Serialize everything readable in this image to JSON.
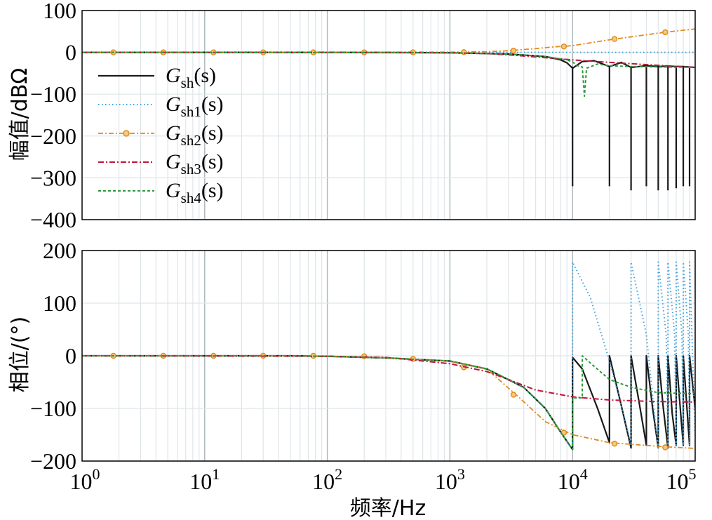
{
  "chart_data": [
    {
      "type": "line",
      "panel": "magnitude",
      "xscale": "log",
      "xlim": [
        1,
        100000
      ],
      "ylim": [
        -400,
        100
      ],
      "ylabel": "幅值/dBΩ",
      "grid": true,
      "legend_position": "left",
      "yticks": [
        "100",
        "0",
        "−100",
        "−200",
        "−300",
        "−400"
      ],
      "series": [
        {
          "name": "G_sh(s)",
          "label_base": "G",
          "label_sub": "sh",
          "label_tail": "(s)",
          "color": "#1a1a1a",
          "style": "solid",
          "points": [
            [
              1,
              0
            ],
            [
              100,
              0
            ],
            [
              1000,
              -1
            ],
            [
              3000,
              -4
            ],
            [
              6000,
              -10
            ],
            [
              8000,
              -18
            ],
            [
              9000,
              -25
            ],
            [
              10000,
              -38
            ],
            [
              12000,
              -22
            ],
            [
              15000,
              -20
            ],
            [
              20000,
              -34
            ],
            [
              25000,
              -24
            ],
            [
              30000,
              -36
            ],
            [
              40000,
              -32
            ],
            [
              50000,
              -34
            ],
            [
              60000,
              -33
            ],
            [
              70000,
              -34
            ],
            [
              80000,
              -34
            ],
            [
              90000,
              -35
            ],
            [
              100000,
              -36
            ]
          ],
          "notches": [
            [
              10000,
              -320
            ],
            [
              20000,
              -320
            ],
            [
              30000,
              -330
            ],
            [
              40000,
              -320
            ],
            [
              50000,
              -330
            ],
            [
              60000,
              -330
            ],
            [
              70000,
              -325
            ],
            [
              80000,
              -320
            ],
            [
              90000,
              -320
            ]
          ]
        },
        {
          "name": "G_sh1(s)",
          "label_base": "G",
          "label_sub": "sh1",
          "label_tail": "(s)",
          "color": "#3aa2e0",
          "style": "dotted",
          "points": [
            [
              1,
              0
            ],
            [
              100000,
              0
            ]
          ]
        },
        {
          "name": "G_sh2(s)",
          "label_base": "G",
          "label_sub": "sh2",
          "label_tail": "(s)",
          "color": "#e08a1e",
          "style": "dashdot-marker",
          "points": [
            [
              1,
              0
            ],
            [
              1000,
              0.5
            ],
            [
              2000,
              1.5
            ],
            [
              3000,
              4
            ],
            [
              5000,
              9
            ],
            [
              7000,
              13
            ],
            [
              10000,
              16
            ],
            [
              20000,
              30
            ],
            [
              30000,
              37
            ],
            [
              50000,
              46
            ],
            [
              70000,
              51
            ],
            [
              100000,
              56
            ]
          ],
          "markers": [
            [
              1.8,
              0
            ],
            [
              4.6,
              0
            ],
            [
              11.8,
              0
            ],
            [
              30,
              0
            ],
            [
              77,
              0
            ],
            [
              200,
              0
            ],
            [
              500,
              0
            ],
            [
              1300,
              0.5
            ],
            [
              3300,
              4
            ],
            [
              8500,
              14
            ],
            [
              22000,
              32
            ],
            [
              57000,
              48
            ]
          ]
        },
        {
          "name": "G_sh3(s)",
          "label_base": "G",
          "label_sub": "sh3",
          "label_tail": "(s)",
          "color": "#c0143c",
          "style": "dashdot",
          "points": [
            [
              1,
              0
            ],
            [
              300,
              0
            ],
            [
              1000,
              -1
            ],
            [
              2000,
              -3
            ],
            [
              3000,
              -6
            ],
            [
              5000,
              -11
            ],
            [
              10000,
              -18
            ],
            [
              20000,
              -24
            ],
            [
              50000,
              -31
            ],
            [
              100000,
              -36
            ]
          ]
        },
        {
          "name": "G_sh4(s)",
          "label_base": "G",
          "label_sub": "sh4",
          "label_tail": "(s)",
          "color": "#2e9a3c",
          "style": "dashed",
          "points": [
            [
              1,
              0
            ],
            [
              1000,
              -1
            ],
            [
              3000,
              -4
            ],
            [
              6000,
              -10
            ],
            [
              9000,
              -18
            ],
            [
              10000,
              -23
            ],
            [
              11000,
              -32
            ],
            [
              12000,
              -35
            ],
            [
              12500,
              -105
            ],
            [
              13000,
              -38
            ],
            [
              16000,
              -28
            ],
            [
              20000,
              -32
            ],
            [
              30000,
              -34
            ],
            [
              100000,
              -36
            ]
          ]
        }
      ]
    },
    {
      "type": "line",
      "panel": "phase",
      "xscale": "log",
      "xlim": [
        1,
        100000
      ],
      "ylim": [
        -200,
        200
      ],
      "xlabel": "频率/Hz",
      "ylabel": "相位/(°)",
      "grid": true,
      "yticks": [
        "200",
        "100",
        "0",
        "−100",
        "−200"
      ],
      "xticks": [
        {
          "base": "10",
          "exp": "0"
        },
        {
          "base": "10",
          "exp": "1"
        },
        {
          "base": "10",
          "exp": "2"
        },
        {
          "base": "10",
          "exp": "3"
        },
        {
          "base": "10",
          "exp": "4"
        },
        {
          "base": "10",
          "exp": "5"
        }
      ],
      "series": [
        {
          "name": "G_sh(s)",
          "color": "#1a1a1a",
          "style": "solid",
          "points": [
            [
              1,
              0
            ],
            [
              50,
              0
            ],
            [
              100,
              -1
            ],
            [
              300,
              -4
            ],
            [
              1000,
              -10
            ],
            [
              2000,
              -25
            ],
            [
              4000,
              -60
            ],
            [
              6000,
              -100
            ],
            [
              8000,
              -145
            ],
            [
              10000,
              -178
            ],
            [
              10001,
              -3
            ],
            [
              12000,
              -25
            ],
            [
              16000,
              -100
            ],
            [
              20000,
              -165
            ],
            [
              20001,
              0
            ],
            [
              25000,
              -95
            ],
            [
              30000,
              -175
            ],
            [
              30001,
              0
            ],
            [
              35000,
              -90
            ],
            [
              40000,
              -170
            ],
            [
              40001,
              0
            ],
            [
              45000,
              -100
            ],
            [
              50000,
              -175
            ],
            [
              50001,
              0
            ],
            [
              55000,
              -100
            ],
            [
              60000,
              -175
            ],
            [
              60001,
              0
            ],
            [
              65000,
              -110
            ],
            [
              70000,
              -170
            ],
            [
              70001,
              0
            ],
            [
              75000,
              -90
            ],
            [
              80000,
              -170
            ],
            [
              80001,
              0
            ],
            [
              90000,
              -170
            ],
            [
              90001,
              0
            ],
            [
              100000,
              -100
            ]
          ]
        },
        {
          "name": "G_sh1(s)",
          "color": "#3aa2e0",
          "style": "dotted",
          "points": [
            [
              1,
              0
            ],
            [
              50,
              0
            ],
            [
              100,
              -1
            ],
            [
              300,
              -4
            ],
            [
              1000,
              -10
            ],
            [
              2000,
              -25
            ],
            [
              4000,
              -60
            ],
            [
              6000,
              -100
            ],
            [
              8000,
              -145
            ],
            [
              10000,
              -178
            ],
            [
              10001,
              178
            ],
            [
              14000,
              110
            ],
            [
              20000,
              -10
            ],
            [
              26000,
              -110
            ],
            [
              30000,
              -170
            ],
            [
              30001,
              178
            ],
            [
              40000,
              40
            ],
            [
              48000,
              -140
            ],
            [
              50000,
              -175
            ],
            [
              50001,
              178
            ],
            [
              58000,
              40
            ],
            [
              60000,
              -170
            ],
            [
              60001,
              178
            ],
            [
              68000,
              40
            ],
            [
              70000,
              -170
            ],
            [
              70001,
              178
            ],
            [
              78000,
              40
            ],
            [
              80000,
              -170
            ],
            [
              80001,
              178
            ],
            [
              88000,
              40
            ],
            [
              90000,
              -170
            ],
            [
              90001,
              178
            ],
            [
              100000,
              -150
            ]
          ]
        },
        {
          "name": "G_sh2(s)",
          "color": "#e08a1e",
          "style": "dashdot-marker",
          "points": [
            [
              1,
              0
            ],
            [
              50,
              0
            ],
            [
              100,
              -1
            ],
            [
              300,
              -4
            ],
            [
              1000,
              -10
            ],
            [
              2000,
              -25
            ],
            [
              3500,
              -75
            ],
            [
              6000,
              -125
            ],
            [
              10000,
              -150
            ],
            [
              20000,
              -165
            ],
            [
              50000,
              -172
            ],
            [
              100000,
              -176
            ]
          ],
          "markers": [
            [
              1.8,
              0
            ],
            [
              4.6,
              0
            ],
            [
              11.8,
              0
            ],
            [
              30,
              0
            ],
            [
              77,
              0
            ],
            [
              200,
              -1
            ],
            [
              500,
              -6
            ],
            [
              1300,
              -22
            ],
            [
              3300,
              -74
            ],
            [
              8500,
              -146
            ],
            [
              22000,
              -167
            ],
            [
              57000,
              -174
            ]
          ]
        },
        {
          "name": "G_sh3(s)",
          "color": "#c0143c",
          "style": "dashdot",
          "points": [
            [
              1,
              0
            ],
            [
              100,
              -1
            ],
            [
              300,
              -3
            ],
            [
              1000,
              -15
            ],
            [
              2000,
              -30
            ],
            [
              3000,
              -45
            ],
            [
              5000,
              -65
            ],
            [
              10000,
              -78
            ],
            [
              20000,
              -84
            ],
            [
              50000,
              -87
            ],
            [
              100000,
              -88
            ]
          ]
        },
        {
          "name": "G_sh4(s)",
          "color": "#2e9a3c",
          "style": "dashed",
          "points": [
            [
              1,
              0
            ],
            [
              50,
              0
            ],
            [
              100,
              -1
            ],
            [
              300,
              -4
            ],
            [
              1000,
              -10
            ],
            [
              2000,
              -25
            ],
            [
              4000,
              -60
            ],
            [
              6000,
              -100
            ],
            [
              8000,
              -145
            ],
            [
              10000,
              -178
            ],
            [
              10001,
              -80
            ],
            [
              12000,
              -80
            ],
            [
              12001,
              0
            ],
            [
              15000,
              -20
            ],
            [
              20000,
              -45
            ],
            [
              30000,
              -60
            ],
            [
              50000,
              -70
            ],
            [
              100000,
              -72
            ]
          ]
        }
      ]
    }
  ]
}
